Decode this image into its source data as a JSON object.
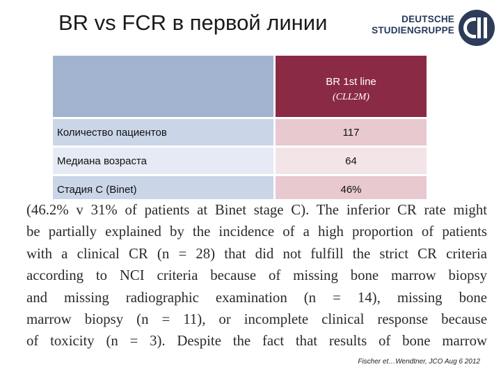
{
  "slide": {
    "title": "BR vs FCR в первой линии"
  },
  "logo": {
    "line1": "DEUTSCHE",
    "line2": "STUDIENGRUPPE"
  },
  "table": {
    "header": {
      "left": "",
      "right_line1": "BR 1st line",
      "right_line2": "(CLL2M)"
    },
    "rows": [
      {
        "label": "Количество пациентов",
        "value": "117"
      },
      {
        "label": "Медиана возраста",
        "value": "64"
      },
      {
        "label": "Стадия C (Binet)",
        "value": "46%"
      }
    ]
  },
  "excerpt": {
    "lines": [
      "(46.2% v 31% of patients at Binet stage C). The inferior CR rate might",
      "be partially explained by the incidence of a high proportion of patients",
      "with a clinical CR (n = 28) that did not fulfill the strict CR criteria",
      "according to NCI criteria because of missing bone marrow biopsy",
      "and missing radiographic examination (n = 14), missing bone",
      "marrow biopsy (n = 11), or incomplete clinical response because",
      "of toxicity (n = 3). Despite the fact that results of bone marrow"
    ]
  },
  "citation": "Fischer et…Wendtner, JCO Aug 6 2012",
  "colors": {
    "header_blue": "#a2b3cf",
    "header_maroon": "#8b2a45",
    "logo_navy": "#2e3c5a"
  }
}
